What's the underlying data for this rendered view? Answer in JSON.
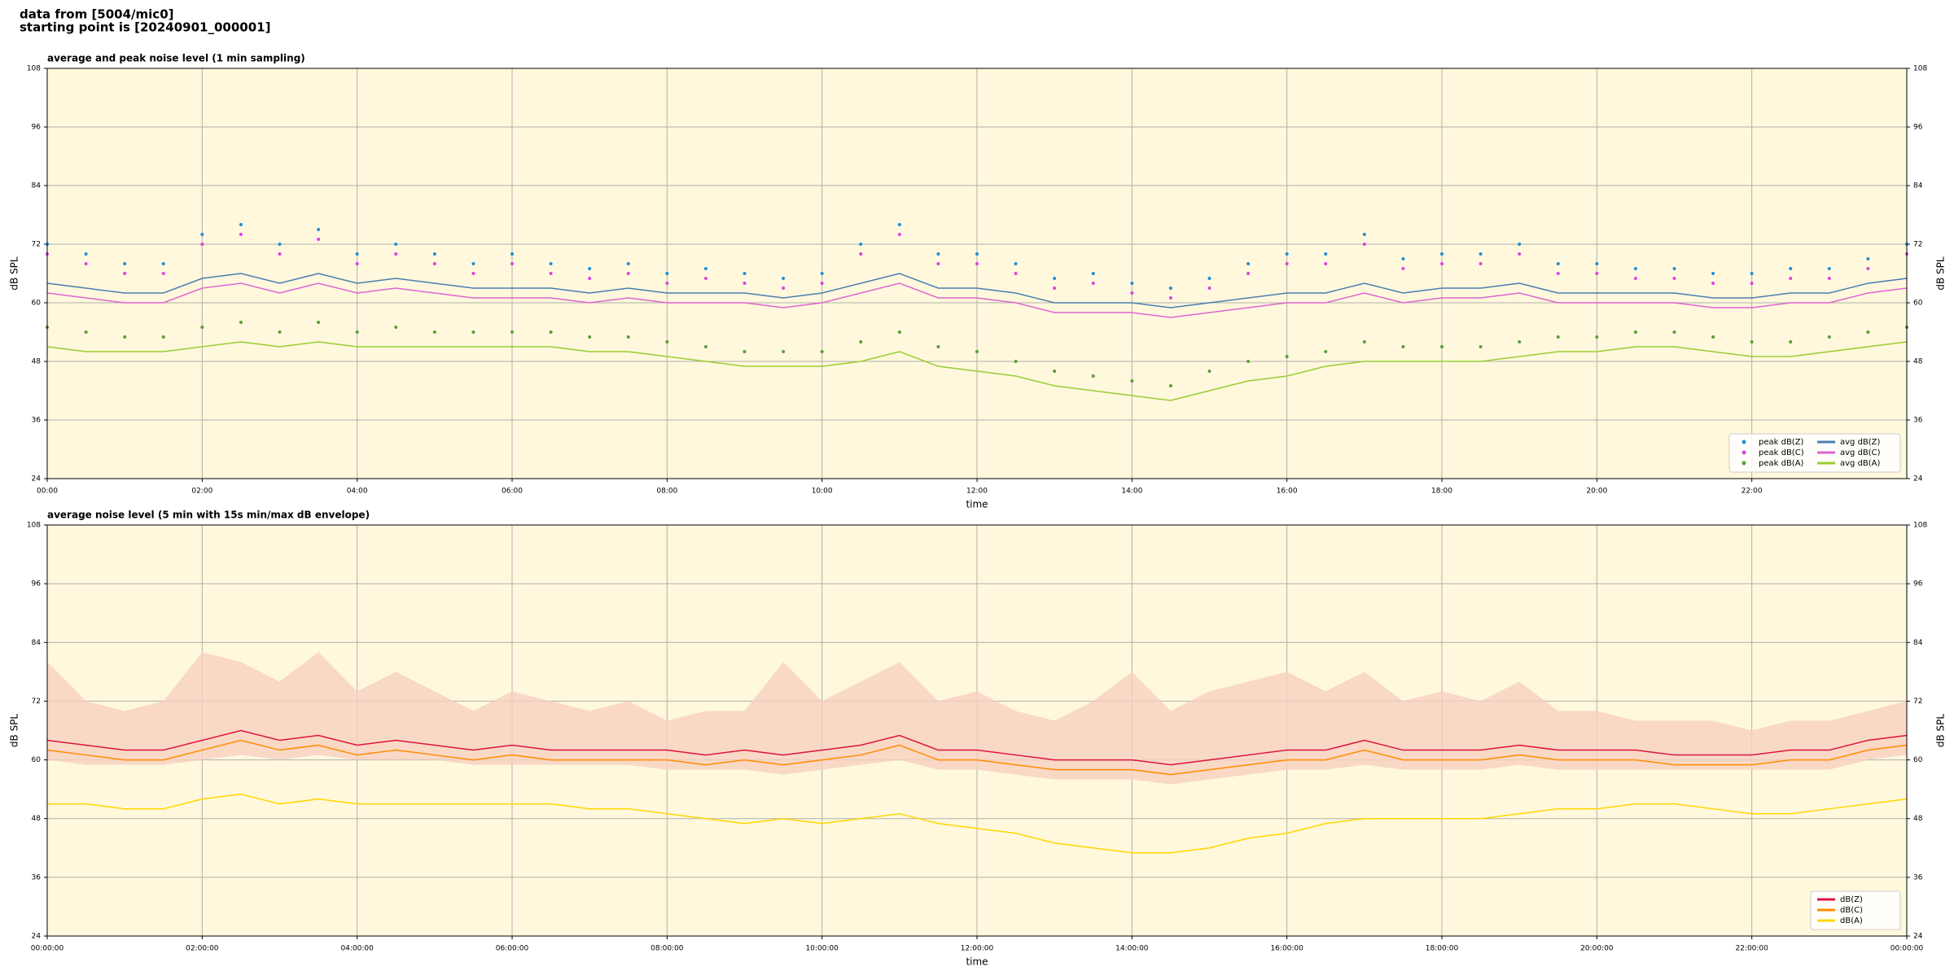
{
  "header": {
    "line1": "data from [5004/mic0]",
    "line2": "starting point is [20240901_000001]"
  },
  "chart_data": [
    {
      "type": "line",
      "title": "average and peak noise level (1 min sampling)",
      "xlabel": "time",
      "ylabel": "dB SPL",
      "background": "#fff8dc",
      "grid": true,
      "legend": "lower right",
      "legend_columns": 2,
      "xlim": [
        0,
        24
      ],
      "ylim": [
        24,
        108
      ],
      "yticks": [
        24,
        36,
        48,
        60,
        72,
        84,
        96,
        108
      ],
      "xticks": [
        {
          "value": 0,
          "label": "00:00"
        },
        {
          "value": 2,
          "label": "02:00"
        },
        {
          "value": 4,
          "label": "04:00"
        },
        {
          "value": 6,
          "label": "06:00"
        },
        {
          "value": 8,
          "label": "08:00"
        },
        {
          "value": 10,
          "label": "10:00"
        },
        {
          "value": 12,
          "label": "12:00"
        },
        {
          "value": 14,
          "label": "14:00"
        },
        {
          "value": 16,
          "label": "16:00"
        },
        {
          "value": 18,
          "label": "18:00"
        },
        {
          "value": 20,
          "label": "20:00"
        },
        {
          "value": 22,
          "label": "22:00"
        }
      ],
      "x": [
        0,
        0.5,
        1,
        1.5,
        2,
        2.5,
        3,
        3.5,
        4,
        4.5,
        5,
        5.5,
        6,
        6.5,
        7,
        7.5,
        8,
        8.5,
        9,
        9.5,
        10,
        10.5,
        11,
        11.5,
        12,
        12.5,
        13,
        13.5,
        14,
        14.5,
        15,
        15.5,
        16,
        16.5,
        17,
        17.5,
        18,
        18.5,
        19,
        19.5,
        20,
        20.5,
        21,
        21.5,
        22,
        22.5,
        23,
        23.5,
        24
      ],
      "series": [
        {
          "name": "peak dB(Z)",
          "style": "points",
          "color": "#1f8fd6",
          "values": [
            72,
            70,
            68,
            68,
            74,
            76,
            72,
            75,
            70,
            72,
            70,
            68,
            70,
            68,
            67,
            68,
            66,
            67,
            66,
            65,
            66,
            72,
            76,
            70,
            70,
            68,
            65,
            66,
            64,
            63,
            65,
            68,
            70,
            70,
            74,
            69,
            70,
            70,
            72,
            68,
            68,
            67,
            67,
            66,
            66,
            67,
            67,
            69,
            72
          ]
        },
        {
          "name": "peak dB(C)",
          "style": "points",
          "color": "#e040e0",
          "values": [
            70,
            68,
            66,
            66,
            72,
            74,
            70,
            73,
            68,
            70,
            68,
            66,
            68,
            66,
            65,
            66,
            64,
            65,
            64,
            63,
            64,
            70,
            74,
            68,
            68,
            66,
            63,
            64,
            62,
            61,
            63,
            66,
            68,
            68,
            72,
            67,
            68,
            68,
            70,
            66,
            66,
            65,
            65,
            64,
            64,
            65,
            65,
            67,
            70
          ]
        },
        {
          "name": "peak dB(A)",
          "style": "points",
          "color": "#5a9e3a",
          "values": [
            55,
            54,
            53,
            53,
            55,
            56,
            54,
            56,
            54,
            55,
            54,
            54,
            54,
            54,
            53,
            53,
            52,
            51,
            50,
            50,
            50,
            52,
            54,
            51,
            50,
            48,
            46,
            45,
            44,
            43,
            46,
            48,
            49,
            50,
            52,
            51,
            51,
            51,
            52,
            53,
            53,
            54,
            54,
            53,
            52,
            52,
            53,
            54,
            55
          ]
        },
        {
          "name": "avg dB(Z)",
          "style": "line",
          "color": "#4a7fb0",
          "values": [
            64,
            63,
            62,
            62,
            65,
            66,
            64,
            66,
            64,
            65,
            64,
            63,
            63,
            63,
            62,
            63,
            62,
            62,
            62,
            61,
            62,
            64,
            66,
            63,
            63,
            62,
            60,
            60,
            60,
            59,
            60,
            61,
            62,
            62,
            64,
            62,
            63,
            63,
            64,
            62,
            62,
            62,
            62,
            61,
            61,
            62,
            62,
            64,
            65
          ]
        },
        {
          "name": "avg dB(C)",
          "style": "line",
          "color": "#dd66d0",
          "values": [
            62,
            61,
            60,
            60,
            63,
            64,
            62,
            64,
            62,
            63,
            62,
            61,
            61,
            61,
            60,
            61,
            60,
            60,
            60,
            59,
            60,
            62,
            64,
            61,
            61,
            60,
            58,
            58,
            58,
            57,
            58,
            59,
            60,
            60,
            62,
            60,
            61,
            61,
            62,
            60,
            60,
            60,
            60,
            59,
            59,
            60,
            60,
            62,
            63
          ]
        },
        {
          "name": "avg dB(A)",
          "style": "line",
          "color": "#9acd32",
          "values": [
            51,
            50,
            50,
            50,
            51,
            52,
            51,
            52,
            51,
            51,
            51,
            51,
            51,
            51,
            50,
            50,
            49,
            48,
            47,
            47,
            47,
            48,
            50,
            47,
            46,
            45,
            43,
            42,
            41,
            40,
            42,
            44,
            45,
            47,
            48,
            48,
            48,
            48,
            49,
            50,
            50,
            51,
            51,
            50,
            49,
            49,
            50,
            51,
            52
          ]
        }
      ]
    },
    {
      "type": "line",
      "title": "average noise level (5 min with 15s min/max dB envelope)",
      "xlabel": "time",
      "ylabel": "dB SPL",
      "background": "#fff8dc",
      "grid": true,
      "legend": "lower right",
      "legend_columns": 1,
      "xlim": [
        0,
        24
      ],
      "ylim": [
        24,
        108
      ],
      "yticks": [
        24,
        36,
        48,
        60,
        72,
        84,
        96,
        108
      ],
      "xticks": [
        {
          "value": 0,
          "label": "00:00:00"
        },
        {
          "value": 2,
          "label": "02:00:00"
        },
        {
          "value": 4,
          "label": "04:00:00"
        },
        {
          "value": 6,
          "label": "06:00:00"
        },
        {
          "value": 8,
          "label": "08:00:00"
        },
        {
          "value": 10,
          "label": "10:00:00"
        },
        {
          "value": 12,
          "label": "12:00:00"
        },
        {
          "value": 14,
          "label": "14:00:00"
        },
        {
          "value": 16,
          "label": "16:00:00"
        },
        {
          "value": 18,
          "label": "18:00:00"
        },
        {
          "value": 20,
          "label": "20:00:00"
        },
        {
          "value": 22,
          "label": "22:00:00"
        },
        {
          "value": 24,
          "label": "00:00:00"
        }
      ],
      "x": [
        0,
        0.5,
        1,
        1.5,
        2,
        2.5,
        3,
        3.5,
        4,
        4.5,
        5,
        5.5,
        6,
        6.5,
        7,
        7.5,
        8,
        8.5,
        9,
        9.5,
        10,
        10.5,
        11,
        11.5,
        12,
        12.5,
        13,
        13.5,
        14,
        14.5,
        15,
        15.5,
        16,
        16.5,
        17,
        17.5,
        18,
        18.5,
        19,
        19.5,
        20,
        20.5,
        21,
        21.5,
        22,
        22.5,
        23,
        23.5,
        24
      ],
      "envelope": {
        "color": "#f8d0c0",
        "max": [
          80,
          72,
          70,
          72,
          82,
          80,
          76,
          82,
          74,
          78,
          74,
          70,
          74,
          72,
          70,
          72,
          68,
          70,
          70,
          80,
          72,
          76,
          80,
          72,
          74,
          70,
          68,
          72,
          78,
          70,
          74,
          76,
          78,
          74,
          78,
          72,
          74,
          72,
          76,
          70,
          70,
          68,
          68,
          68,
          66,
          68,
          68,
          70,
          72
        ],
        "min": [
          60,
          59,
          59,
          59,
          60,
          61,
          60,
          61,
          60,
          60,
          60,
          59,
          59,
          59,
          59,
          59,
          58,
          58,
          58,
          57,
          58,
          59,
          60,
          58,
          58,
          57,
          56,
          56,
          56,
          55,
          56,
          57,
          58,
          58,
          59,
          58,
          58,
          58,
          59,
          58,
          58,
          58,
          58,
          58,
          58,
          58,
          58,
          60,
          61
        ]
      },
      "series": [
        {
          "name": "dB(Z)",
          "style": "line",
          "color": "#dc143c",
          "values": [
            64,
            63,
            62,
            62,
            64,
            66,
            64,
            65,
            63,
            64,
            63,
            62,
            63,
            62,
            62,
            62,
            62,
            61,
            62,
            61,
            62,
            63,
            65,
            62,
            62,
            61,
            60,
            60,
            60,
            59,
            60,
            61,
            62,
            62,
            64,
            62,
            62,
            62,
            63,
            62,
            62,
            62,
            61,
            61,
            61,
            62,
            62,
            64,
            65
          ]
        },
        {
          "name": "dB(C)",
          "style": "line",
          "color": "#ff8c00",
          "values": [
            62,
            61,
            60,
            60,
            62,
            64,
            62,
            63,
            61,
            62,
            61,
            60,
            61,
            60,
            60,
            60,
            60,
            59,
            60,
            59,
            60,
            61,
            63,
            60,
            60,
            59,
            58,
            58,
            58,
            57,
            58,
            59,
            60,
            60,
            62,
            60,
            60,
            60,
            61,
            60,
            60,
            60,
            59,
            59,
            59,
            60,
            60,
            62,
            63
          ]
        },
        {
          "name": "dB(A)",
          "style": "line",
          "color": "#ffd700",
          "values": [
            51,
            51,
            50,
            50,
            52,
            53,
            51,
            52,
            51,
            51,
            51,
            51,
            51,
            51,
            50,
            50,
            49,
            48,
            47,
            48,
            47,
            48,
            49,
            47,
            46,
            45,
            43,
            42,
            41,
            41,
            42,
            44,
            45,
            47,
            48,
            48,
            48,
            48,
            49,
            50,
            50,
            51,
            51,
            50,
            49,
            49,
            50,
            51,
            52
          ]
        }
      ]
    }
  ]
}
